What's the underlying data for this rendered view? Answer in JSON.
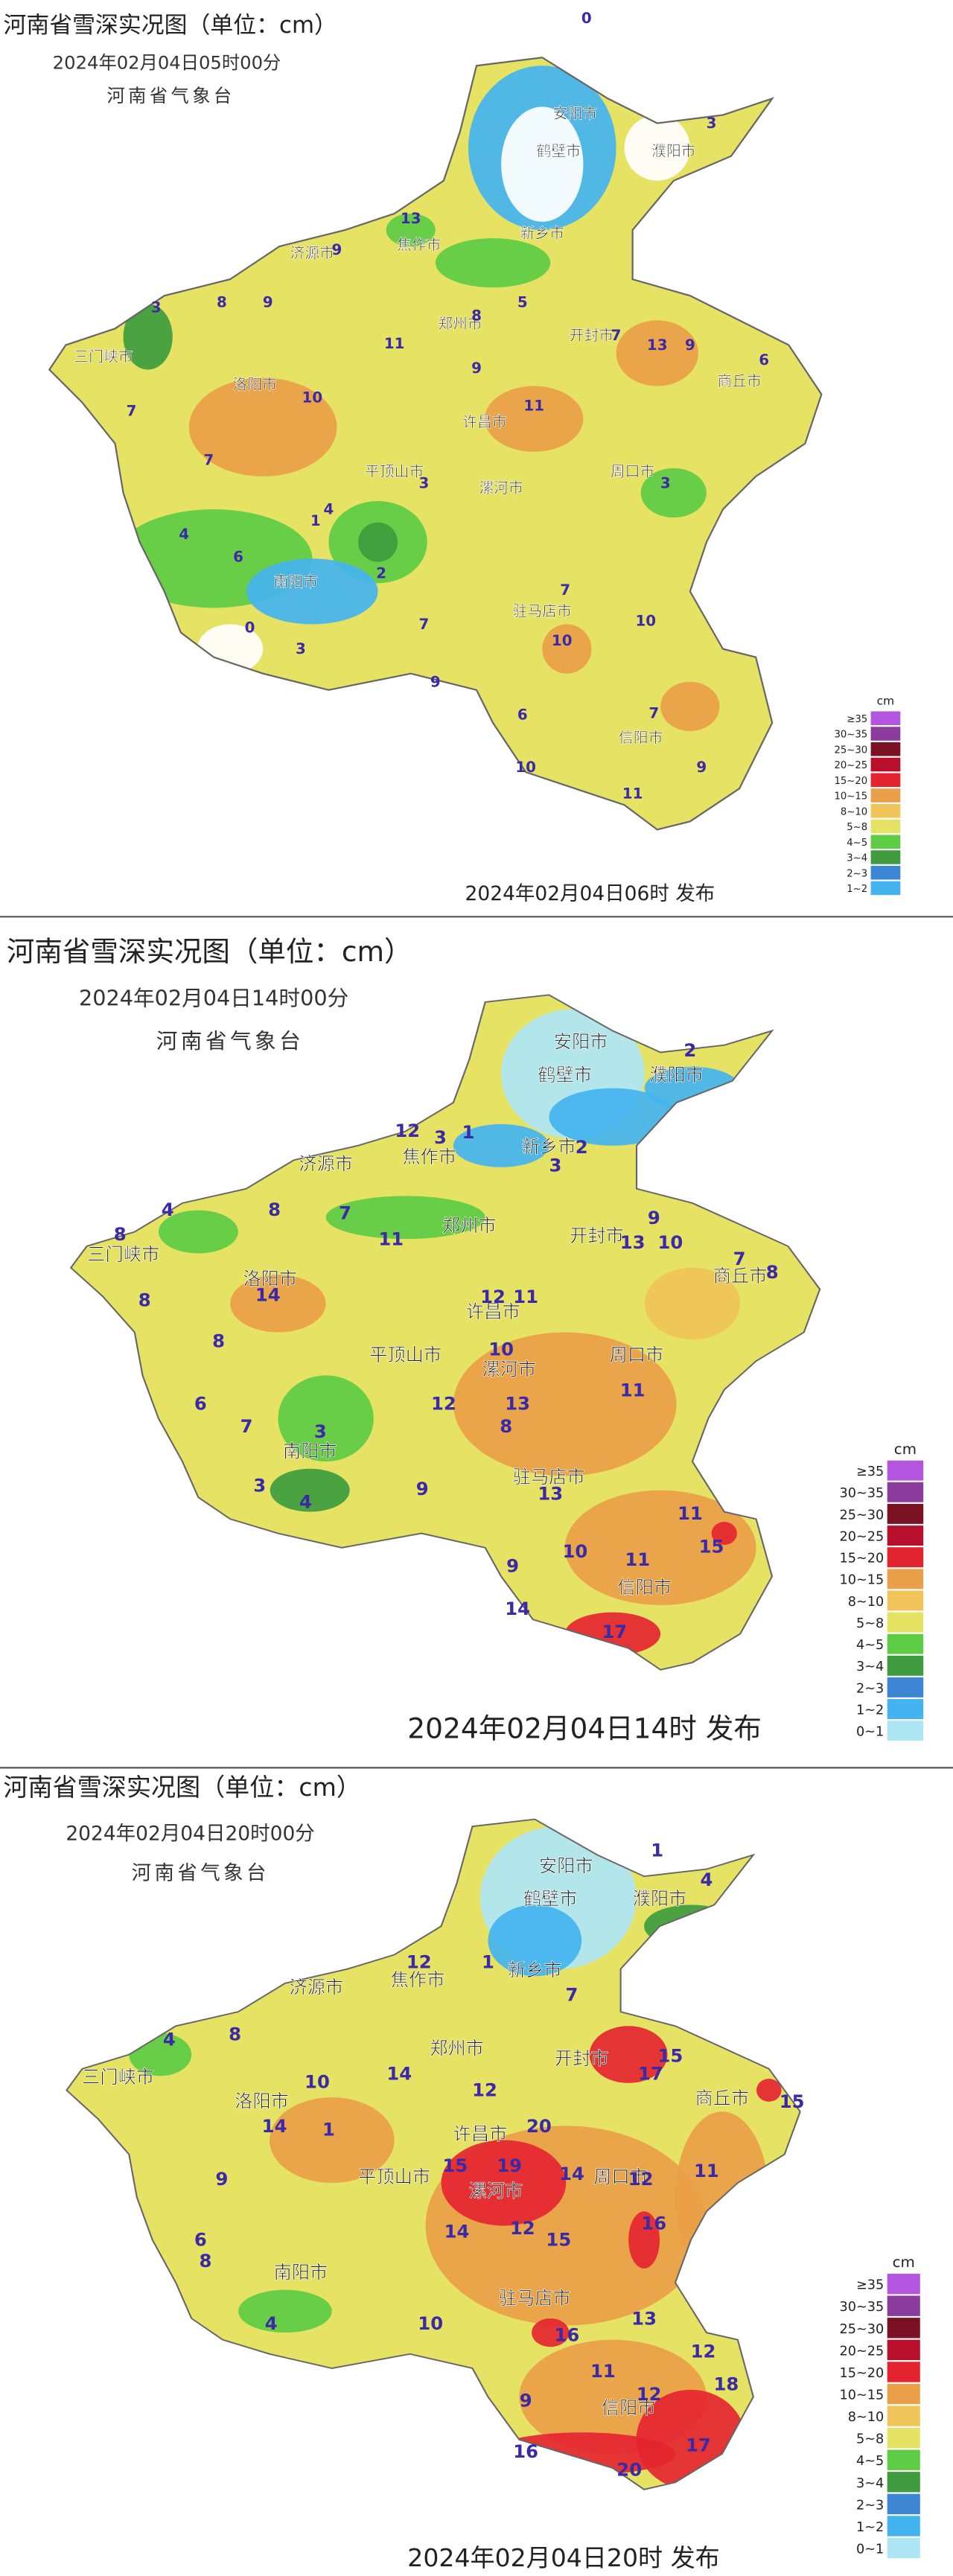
{
  "panels": [
    {
      "title": "河南省雪深实况图（单位：cm）",
      "time": "2024年02月04日05时00分",
      "issuer": "河南省气象台",
      "footer": "2024年02月04日06时 发布",
      "legend": {
        "unit": "cm",
        "items": [
          {
            "label": "≥35",
            "color": "#b455e0"
          },
          {
            "label": "30~35",
            "color": "#8c3c9c"
          },
          {
            "label": "25~30",
            "color": "#7a1224"
          },
          {
            "label": "20~25",
            "color": "#b8102c"
          },
          {
            "label": "15~20",
            "color": "#e42530"
          },
          {
            "label": "10~15",
            "color": "#eaa048"
          },
          {
            "label": "8~10",
            "color": "#f0c458"
          },
          {
            "label": "5~8",
            "color": "#e6e264"
          },
          {
            "label": "4~5",
            "color": "#5ecc44"
          },
          {
            "label": "3~4",
            "color": "#3e9c3e"
          },
          {
            "label": "2~3",
            "color": "#3d86d4"
          },
          {
            "label": "1~2",
            "color": "#44b4f0"
          }
        ]
      },
      "cities": [
        "安阳市",
        "鹤壁市",
        "濮阳市",
        "新乡市",
        "焦作市",
        "济源市",
        "郑州市",
        "开封市",
        "商丘市",
        "三门峡市",
        "洛阳市",
        "许昌市",
        "平顶山市",
        "漯河市",
        "周口市",
        "南阳市",
        "驻马店市",
        "信阳市"
      ],
      "depths": [
        0,
        3,
        13,
        9,
        3,
        8,
        9,
        5,
        8,
        7,
        13,
        9,
        6,
        11,
        10,
        7,
        9,
        11,
        7,
        3,
        3,
        4,
        6,
        1,
        2,
        0,
        3,
        7,
        10,
        10,
        9,
        6,
        7,
        10,
        11,
        9,
        7,
        4
      ]
    },
    {
      "title": "河南省雪深实况图（单位：cm）",
      "time": "2024年02月04日14时00分",
      "issuer": "河南省气象台",
      "footer": "2024年02月04日14时 发布",
      "legend": {
        "unit": "cm",
        "items": [
          {
            "label": "≥35",
            "color": "#b455e0"
          },
          {
            "label": "30~35",
            "color": "#8c3c9c"
          },
          {
            "label": "25~30",
            "color": "#7a1224"
          },
          {
            "label": "20~25",
            "color": "#b8102c"
          },
          {
            "label": "15~20",
            "color": "#e42530"
          },
          {
            "label": "10~15",
            "color": "#eaa048"
          },
          {
            "label": "8~10",
            "color": "#f0c458"
          },
          {
            "label": "5~8",
            "color": "#e6e264"
          },
          {
            "label": "4~5",
            "color": "#5ecc44"
          },
          {
            "label": "3~4",
            "color": "#3e9c3e"
          },
          {
            "label": "2~3",
            "color": "#3d86d4"
          },
          {
            "label": "1~2",
            "color": "#44b4f0"
          },
          {
            "label": "0~1",
            "color": "#aee6f6"
          }
        ]
      },
      "cities": [
        "安阳市",
        "鹤壁市",
        "濮阳市",
        "新乡市",
        "焦作市",
        "济源市",
        "郑州市",
        "开封市",
        "商丘市",
        "三门峡市",
        "洛阳市",
        "许昌市",
        "平顶山市",
        "漯河市",
        "周口市",
        "南阳市",
        "驻马店市",
        "信阳市"
      ],
      "depths": [
        2,
        3,
        12,
        1,
        2,
        3,
        4,
        8,
        8,
        11,
        7,
        13,
        9,
        10,
        7,
        8,
        8,
        14,
        12,
        11,
        8,
        10,
        11,
        6,
        7,
        3,
        12,
        13,
        8,
        13,
        3,
        4,
        9,
        10,
        11,
        11,
        15,
        9,
        14,
        17
      ]
    },
    {
      "title": "河南省雪深实况图（单位：cm）",
      "time": "2024年02月04日20时00分",
      "issuer": "河南省气象台",
      "footer": "2024年02月04日20时 发布",
      "legend": {
        "unit": "cm",
        "items": [
          {
            "label": "≥35",
            "color": "#b455e0"
          },
          {
            "label": "30~35",
            "color": "#8c3c9c"
          },
          {
            "label": "25~30",
            "color": "#7a1224"
          },
          {
            "label": "20~25",
            "color": "#b8102c"
          },
          {
            "label": "15~20",
            "color": "#e42530"
          },
          {
            "label": "10~15",
            "color": "#eaa048"
          },
          {
            "label": "8~10",
            "color": "#f0c458"
          },
          {
            "label": "5~8",
            "color": "#e6e264"
          },
          {
            "label": "4~5",
            "color": "#5ecc44"
          },
          {
            "label": "3~4",
            "color": "#3e9c3e"
          },
          {
            "label": "2~3",
            "color": "#3d86d4"
          },
          {
            "label": "1~2",
            "color": "#44b4f0"
          },
          {
            "label": "0~1",
            "color": "#aee6f6"
          }
        ]
      },
      "cities": [
        "安阳市",
        "鹤壁市",
        "濮阳市",
        "新乡市",
        "焦作市",
        "济源市",
        "郑州市",
        "开封市",
        "商丘市",
        "三门峡市",
        "洛阳市",
        "许昌市",
        "平顶山市",
        "漯河市",
        "周口市",
        "南阳市",
        "驻马店市",
        "信阳市"
      ],
      "depths": [
        1,
        4,
        12,
        1,
        7,
        17,
        15,
        15,
        4,
        8,
        10,
        14,
        12,
        14,
        1,
        9,
        20,
        19,
        15,
        14,
        12,
        11,
        16,
        14,
        12,
        15,
        8,
        4,
        10,
        16,
        13,
        12,
        18,
        11,
        12,
        17,
        9,
        16,
        20,
        6
      ]
    }
  ]
}
